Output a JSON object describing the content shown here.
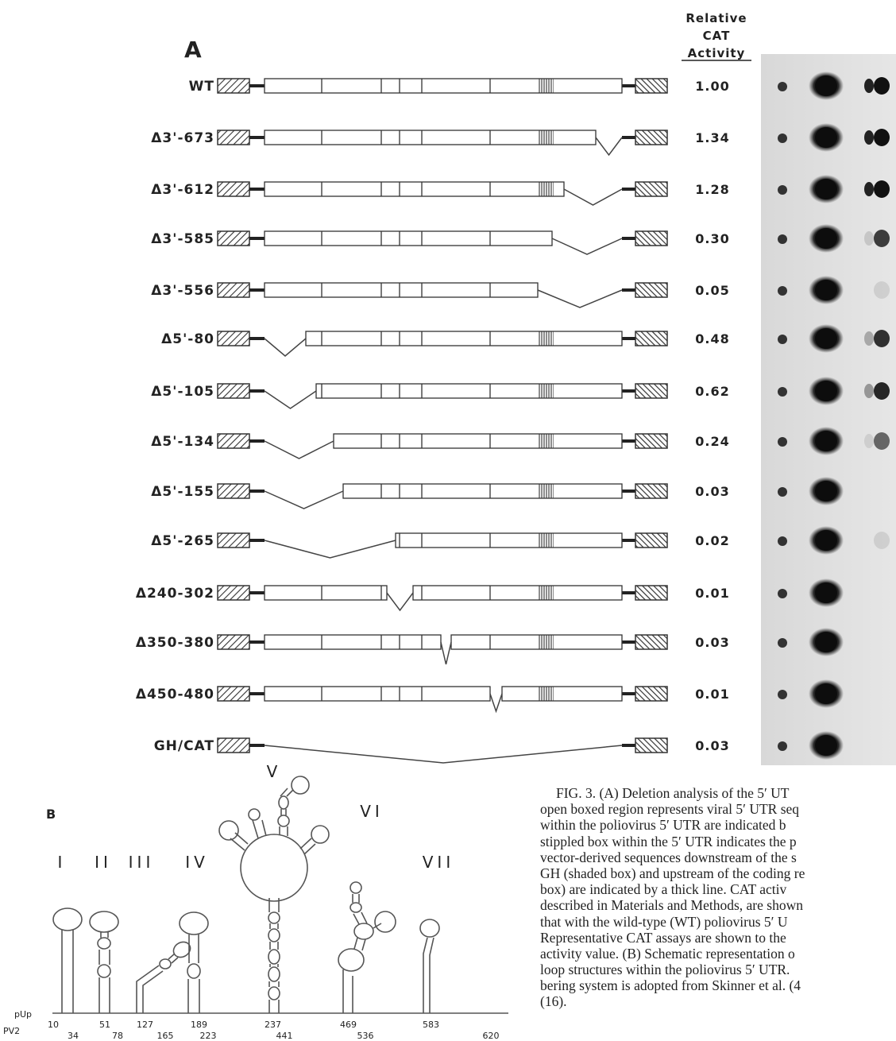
{
  "panel_a": {
    "label": "A",
    "header": [
      "Relative",
      "CAT",
      "Activity"
    ],
    "rows": [
      {
        "name": "WT",
        "activity": "1.00"
      },
      {
        "name": "Δ3'-673",
        "activity": "1.34"
      },
      {
        "name": "Δ3'-612",
        "activity": "1.28"
      },
      {
        "name": "Δ3'-585",
        "activity": "0.30"
      },
      {
        "name": "Δ3'-556",
        "activity": "0.05"
      },
      {
        "name": "Δ5'-80",
        "activity": "0.48"
      },
      {
        "name": "Δ5'-105",
        "activity": "0.62"
      },
      {
        "name": "Δ5'-134",
        "activity": "0.24"
      },
      {
        "name": "Δ5'-155",
        "activity": "0.03"
      },
      {
        "name": "Δ5'-265",
        "activity": "0.02"
      },
      {
        "name": "Δ240-302",
        "activity": "0.01"
      },
      {
        "name": "Δ350-380",
        "activity": "0.03"
      },
      {
        "name": "Δ450-480",
        "activity": "0.01"
      },
      {
        "name": "GH/CAT",
        "activity": "0.03"
      }
    ]
  },
  "panel_b": {
    "label": "B",
    "domains": [
      "I",
      "II",
      "III",
      "IV",
      "V",
      "VI",
      "VII"
    ],
    "row_labels": [
      "pUp",
      "PV2"
    ],
    "upper_numbers": [
      "10",
      "51",
      "127",
      "189",
      "237",
      "469",
      "583"
    ],
    "lower_numbers": [
      "34",
      "78",
      "165",
      "223",
      "441",
      "536",
      "620"
    ]
  },
  "caption": {
    "lines": [
      "FIG. 3. (A) Deletion analysis of the 5′ UT",
      "open boxed region represents viral 5′ UTR seq",
      "within the poliovirus 5′ UTR are indicated b",
      "stippled box within the 5′ UTR indicates the p",
      "vector-derived sequences downstream of the s",
      "GH (shaded box) and upstream of the coding re",
      "box) are indicated by a thick line. CAT activ",
      "described in Materials and Methods, are shown",
      "that with the wild-type (WT) poliovirus 5′ U",
      "Representative CAT assays are shown to the",
      "activity value. (B) Schematic representation o",
      "loop structures within the poliovirus 5′ UTR.",
      "bering system is adopted from Skinner et al. (4",
      "(16)."
    ]
  }
}
